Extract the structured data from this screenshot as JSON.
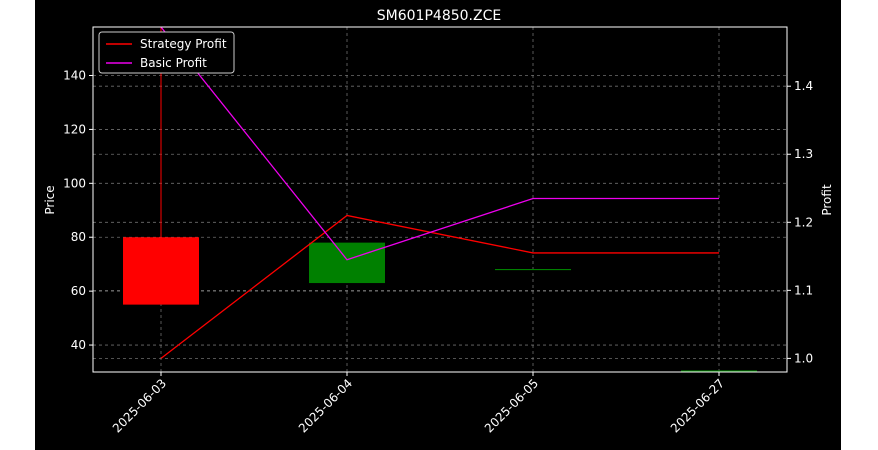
{
  "colors": {
    "background": "#000000",
    "axes_edge": "#ffffff",
    "grid": "#8a8a8a",
    "up_candle": "#008000",
    "down_candle": "#ff0000",
    "strategy_profit": "#ff0000",
    "basic_profit": "#ee00ee",
    "text": "#ffffff"
  },
  "chart_data": {
    "type": "line",
    "title": "SM601P4850.ZCE",
    "xlabel": "",
    "ylabel": "Price",
    "y2label": "Profit",
    "categories": [
      "2025-06-03",
      "2025-06-04",
      "2025-06-05",
      "2025-06-27"
    ],
    "ylim": [
      30,
      158
    ],
    "y2lim": [
      0.98,
      1.487
    ],
    "yticks": [
      40,
      60,
      80,
      100,
      120,
      140
    ],
    "y2ticks": [
      1.0,
      1.1,
      1.2,
      1.3,
      1.4
    ],
    "y2tick_labels": [
      "1.0",
      "1.1",
      "1.2",
      "1.3",
      "1.4"
    ],
    "grid": true,
    "legend_position": "top-left",
    "candles": [
      {
        "date": "2025-06-03",
        "open": 80,
        "high": 158,
        "low": 55,
        "close": 55
      },
      {
        "date": "2025-06-04",
        "open": 63,
        "high": 78,
        "low": 63,
        "close": 78
      },
      {
        "date": "2025-06-05",
        "open": 68,
        "high": 68,
        "low": 68,
        "close": 68
      },
      {
        "date": "2025-06-27",
        "open": 30,
        "high": 30,
        "low": 30,
        "close": 30
      }
    ],
    "series": [
      {
        "name": "Strategy Profit",
        "axis": "right",
        "values": [
          1.0,
          1.21,
          1.155,
          1.155
        ]
      },
      {
        "name": "Basic Profit",
        "axis": "right",
        "values": [
          1.487,
          1.145,
          1.235,
          1.235
        ]
      }
    ]
  }
}
